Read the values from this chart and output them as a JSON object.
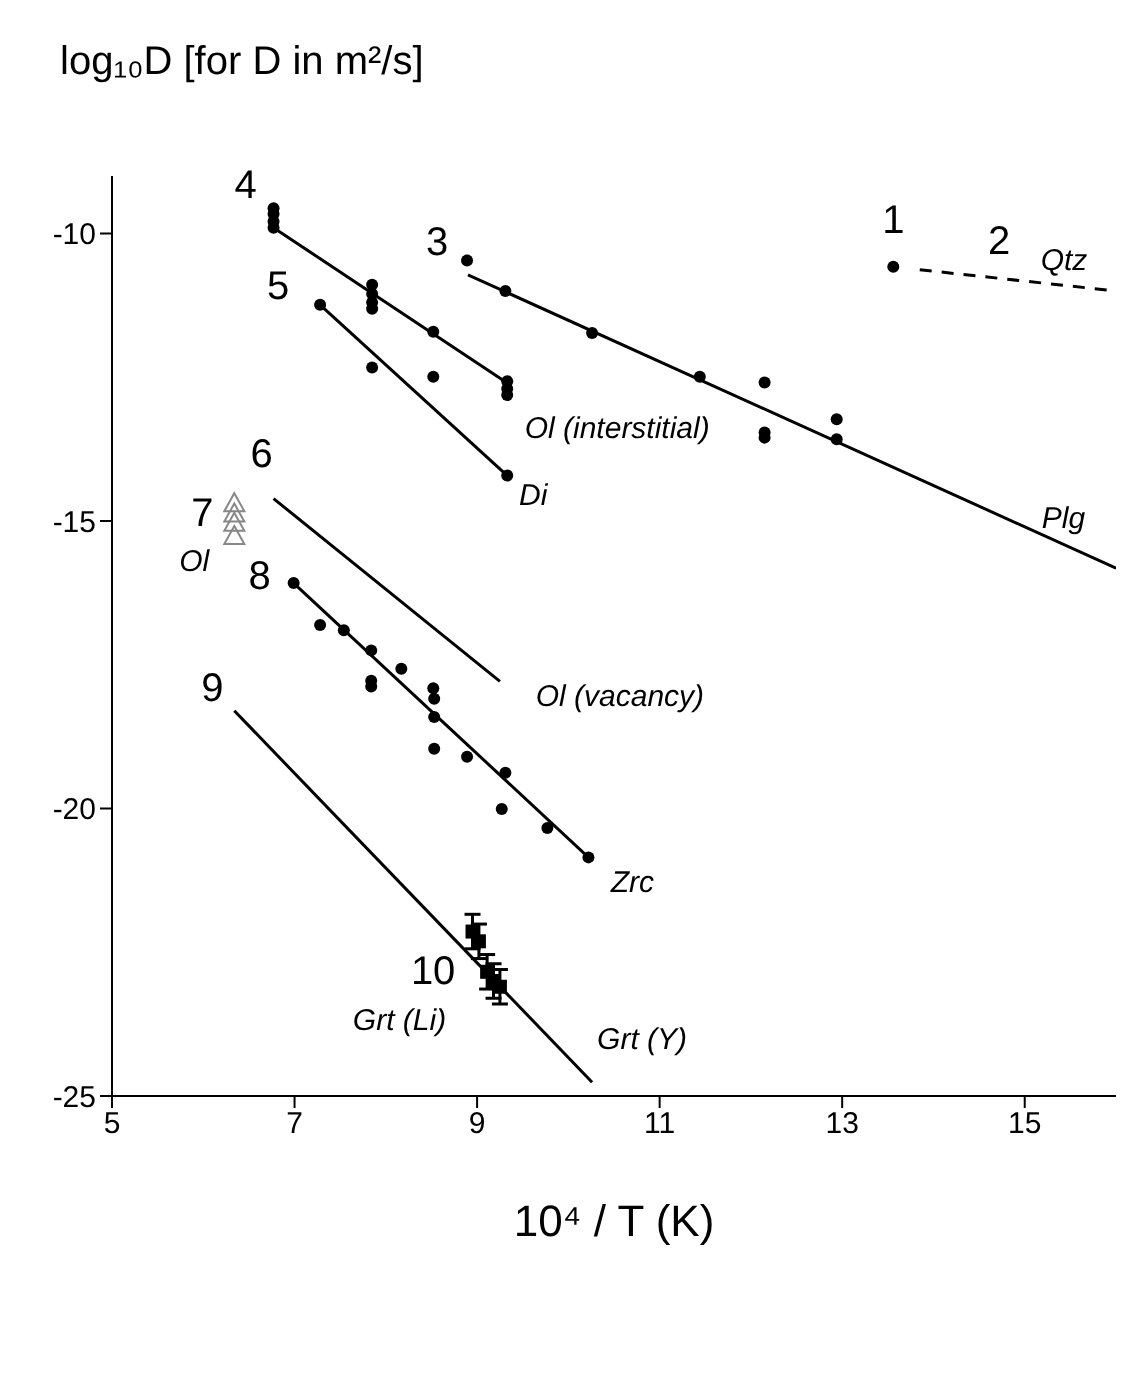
{
  "chart_data": {
    "type": "scatter",
    "title": "log₁₀D [for D in m²/s]",
    "xlabel": "10⁴ / T (K)",
    "xlim": [
      5,
      16
    ],
    "xticks": [
      5,
      7,
      9,
      11,
      13,
      15
    ],
    "ylim": [
      -25,
      -9
    ],
    "yticks": [
      -25,
      -20,
      -15,
      -10
    ],
    "grid": false,
    "series": [
      {
        "type": "line",
        "color": "#000000",
        "line_style": "dashed",
        "x": [
          13.85,
          16
        ],
        "values": [
          -10.63,
          -11.0
        ]
      },
      {
        "type": "scatter",
        "color": "#000000",
        "marker": "circle",
        "x": [
          13.56
        ],
        "values": [
          -10.58
        ]
      },
      {
        "type": "line",
        "color": "#000000",
        "line_style": "solid",
        "x": [
          8.9,
          16
        ],
        "values": [
          -10.72,
          -15.82
        ]
      },
      {
        "type": "scatter",
        "color": "#000000",
        "marker": "circle",
        "x": [
          8.89,
          9.31,
          10.26,
          11.44,
          12.15,
          12.15,
          12.15,
          12.94,
          12.94
        ],
        "values": [
          -10.47,
          -11.0,
          -11.73,
          -12.49,
          -12.59,
          -13.46,
          -13.55,
          -13.23,
          -13.58
        ]
      },
      {
        "type": "line",
        "color": "#000000",
        "line_style": "solid",
        "x": [
          6.77,
          9.33
        ],
        "values": [
          -9.9,
          -12.6
        ]
      },
      {
        "type": "scatter",
        "color": "#000000",
        "marker": "circle",
        "x": [
          6.77,
          6.77,
          6.77,
          6.77,
          7.85,
          7.85,
          7.85,
          7.85,
          8.52,
          9.33,
          9.33,
          9.33
        ],
        "values": [
          -9.56,
          -9.66,
          -9.79,
          -9.9,
          -10.89,
          -11.05,
          -11.2,
          -11.31,
          -11.71,
          -12.57,
          -12.7,
          -12.81
        ]
      },
      {
        "type": "line",
        "color": "#000000",
        "line_style": "solid",
        "x": [
          7.28,
          9.33
        ],
        "values": [
          -11.24,
          -14.21
        ]
      },
      {
        "type": "scatter",
        "color": "#000000",
        "marker": "circle",
        "x": [
          7.28,
          7.85,
          8.52,
          9.33
        ],
        "values": [
          -11.24,
          -12.33,
          -12.49,
          -14.21
        ]
      },
      {
        "type": "line",
        "color": "#000000",
        "line_style": "solid",
        "x": [
          6.77,
          9.25
        ],
        "values": [
          -14.61,
          -17.79
        ]
      },
      {
        "type": "scatter",
        "color": "#888888",
        "marker": "triangle",
        "x": [
          6.34,
          6.34,
          6.34,
          6.34
        ],
        "values": [
          -14.69,
          -14.87,
          -15.03,
          -15.26
        ]
      },
      {
        "type": "line",
        "color": "#000000",
        "line_style": "solid",
        "x": [
          6.99,
          10.22
        ],
        "values": [
          -16.08,
          -20.85
        ]
      },
      {
        "type": "scatter",
        "color": "#000000",
        "marker": "circle",
        "x": [
          6.99,
          7.28,
          7.54,
          7.84,
          8.17,
          7.84,
          7.84,
          8.52,
          8.53,
          8.53,
          8.53,
          8.89,
          9.31,
          9.27,
          9.77,
          10.22
        ],
        "values": [
          -16.08,
          -16.81,
          -16.9,
          -17.25,
          -17.57,
          -17.78,
          -17.88,
          -17.91,
          -18.09,
          -18.41,
          -18.96,
          -19.1,
          -19.38,
          -20.01,
          -20.34,
          -20.85
        ]
      },
      {
        "type": "line",
        "color": "#000000",
        "line_style": "solid",
        "x": [
          6.34,
          10.26
        ],
        "values": [
          -18.3,
          -24.76
        ]
      },
      {
        "type": "scatter",
        "color": "#000000",
        "marker": "square",
        "x": [
          8.95,
          9.02,
          9.11,
          9.18,
          9.25
        ],
        "values": [
          -22.14,
          -22.31,
          -22.84,
          -23.0,
          -23.1
        ],
        "errors": [
          0.3,
          0.3,
          0.3,
          0.3,
          0.3
        ]
      }
    ],
    "annotations": [
      {
        "text": "1",
        "x": 13.56,
        "y": -10.58
      },
      {
        "text": "2",
        "x": 14.72,
        "y": -10.78
      },
      {
        "text": "Qtz",
        "x": 15.43,
        "y": -10.9
      },
      {
        "text": "3",
        "x": 8.89,
        "y": -10.47
      },
      {
        "text": "4",
        "x": 6.77,
        "y": -9.9
      },
      {
        "text": "5",
        "x": 7.28,
        "y": -11.24
      },
      {
        "text": "Ol (interstitial)",
        "x": 9.33,
        "y": -12.6
      },
      {
        "text": "Di",
        "x": 9.33,
        "y": -14.21
      },
      {
        "text": "Plg",
        "x": 15.6,
        "y": -15.53
      },
      {
        "text": "6",
        "x": 6.77,
        "y": -14.61
      },
      {
        "text": "7",
        "x": 6.34,
        "y": -14.87
      },
      {
        "text": "Ol",
        "x": 6.34,
        "y": -15.26
      },
      {
        "text": "8",
        "x": 6.99,
        "y": -16.08
      },
      {
        "text": "Ol (vacancy)",
        "x": 9.25,
        "y": -17.79
      },
      {
        "text": "Zrc",
        "x": 10.22,
        "y": -20.85
      },
      {
        "text": "9",
        "x": 6.34,
        "y": -18.3
      },
      {
        "text": "10",
        "x": 9.11,
        "y": -22.84
      },
      {
        "text": "Grt (Li)",
        "x": 9.18,
        "y": -23.0
      },
      {
        "text": "Grt (Y)",
        "x": 10.26,
        "y": -24.76
      }
    ]
  }
}
